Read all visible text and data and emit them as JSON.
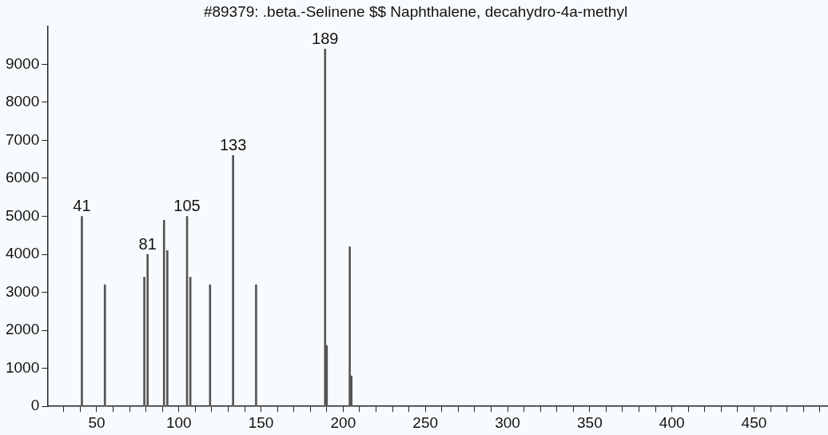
{
  "chart_data": {
    "type": "bar",
    "title": "#89379: .beta.-Selinene $$ Naphthalene, decahydro-4a-methyl",
    "x": [
      41,
      55,
      79,
      81,
      91,
      93,
      105,
      107,
      119,
      133,
      147,
      189,
      190,
      204,
      205
    ],
    "values": [
      5000,
      3200,
      3400,
      4000,
      4900,
      4100,
      5000,
      3400,
      3200,
      6600,
      3200,
      9400,
      1600,
      4200,
      800
    ],
    "color": "#555555",
    "xlim": [
      20,
      495
    ],
    "xticks": [
      {
        "value": 30,
        "label": null
      },
      {
        "value": 40,
        "label": null
      },
      50,
      {
        "value": 60,
        "label": null
      },
      {
        "value": 70,
        "label": null
      },
      {
        "value": 80,
        "label": null
      },
      {
        "value": 90,
        "label": null
      },
      100,
      {
        "value": 110,
        "label": null
      },
      {
        "value": 120,
        "label": null
      },
      {
        "value": 130,
        "label": null
      },
      {
        "value": 140,
        "label": null
      },
      150,
      {
        "value": 160,
        "label": null
      },
      {
        "value": 170,
        "label": null
      },
      {
        "value": 180,
        "label": null
      },
      {
        "value": 190,
        "label": null
      },
      200,
      {
        "value": 210,
        "label": null
      },
      {
        "value": 220,
        "label": null
      },
      {
        "value": 230,
        "label": null
      },
      {
        "value": 240,
        "label": null
      },
      250,
      {
        "value": 260,
        "label": null
      },
      {
        "value": 270,
        "label": null
      },
      {
        "value": 280,
        "label": null
      },
      {
        "value": 290,
        "label": null
      },
      300,
      {
        "value": 310,
        "label": null
      },
      {
        "value": 320,
        "label": null
      },
      {
        "value": 330,
        "label": null
      },
      {
        "value": 340,
        "label": null
      },
      350,
      {
        "value": 360,
        "label": null
      },
      {
        "value": 370,
        "label": null
      },
      {
        "value": 380,
        "label": null
      },
      {
        "value": 390,
        "label": null
      },
      400,
      {
        "value": 410,
        "label": null
      },
      {
        "value": 420,
        "label": null
      },
      {
        "value": 430,
        "label": null
      },
      {
        "value": 440,
        "label": null
      },
      450,
      {
        "value": 460,
        "label": null
      },
      {
        "value": 470,
        "label": null
      },
      {
        "value": 480,
        "label": null
      },
      {
        "value": 490,
        "label": null
      }
    ],
    "ylim": [
      0,
      10000
    ],
    "yticks": [
      0,
      1000,
      2000,
      3000,
      4000,
      5000,
      6000,
      7000,
      8000,
      9000
    ],
    "annotations": [
      {
        "text": "41",
        "x": 41,
        "y": 5000
      },
      {
        "text": "81",
        "x": 81,
        "y": 4000
      },
      {
        "text": "105",
        "x": 105,
        "y": 5000
      },
      {
        "text": "133",
        "x": 133,
        "y": 6600
      },
      {
        "text": "189",
        "x": 189,
        "y": 9400
      }
    ],
    "grid": false,
    "legend": false
  }
}
